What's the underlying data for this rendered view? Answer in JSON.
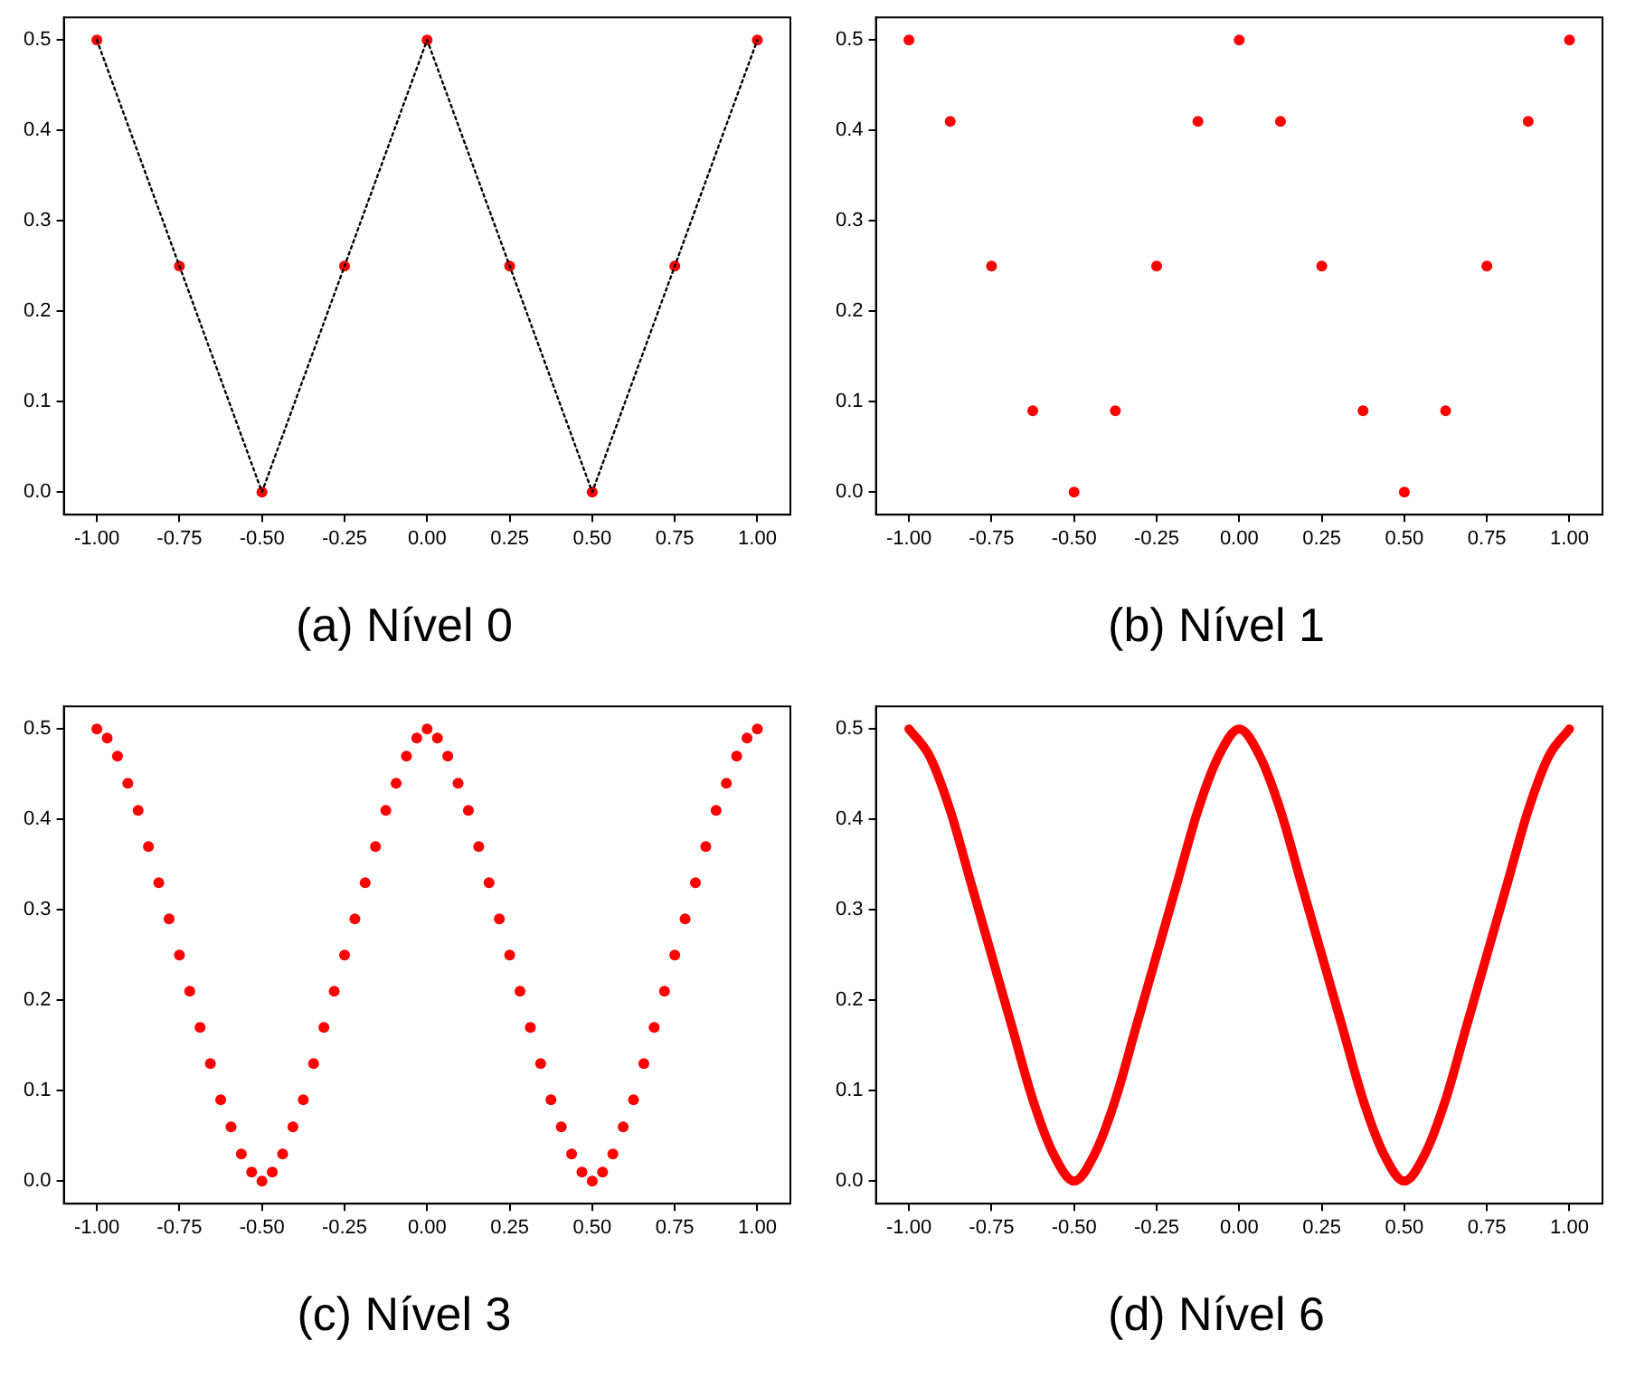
{
  "chart_data": [
    {
      "type": "scatter",
      "title": "(a) Nível 0",
      "xlim": [
        -1.1,
        1.1
      ],
      "ylim": [
        -0.025,
        0.525
      ],
      "xticks": [
        {
          "value": -1,
          "label": "-1.00"
        },
        {
          "value": -0.75,
          "label": "-0.75"
        },
        {
          "value": -0.5,
          "label": "-0.50"
        },
        {
          "value": -0.25,
          "label": "-0.25"
        },
        {
          "value": 0,
          "label": "0.00"
        },
        {
          "value": 0.25,
          "label": "0.25"
        },
        {
          "value": 0.5,
          "label": "0.50"
        },
        {
          "value": 0.75,
          "label": "0.75"
        },
        {
          "value": 1,
          "label": "1.00"
        }
      ],
      "yticks": [
        {
          "value": 0,
          "label": "0.0"
        },
        {
          "value": 0.1,
          "label": "0.1"
        },
        {
          "value": 0.2,
          "label": "0.2"
        },
        {
          "value": 0.3,
          "label": "0.3"
        },
        {
          "value": 0.4,
          "label": "0.4"
        },
        {
          "value": 0.5,
          "label": "0.5"
        }
      ],
      "grid": false,
      "marker": "circle",
      "series": [
        {
          "type": "line",
          "color": "#000000",
          "line_style": "dotted",
          "marker": "none",
          "x": [
            -1,
            -0.75,
            -0.5,
            -0.25,
            0,
            0.25,
            0.5,
            0.75,
            1
          ],
          "values": [
            0.5,
            0.25,
            0,
            0.25,
            0.5,
            0.25,
            0,
            0.25,
            0.5
          ]
        },
        {
          "type": "scatter",
          "color": "#ff0000",
          "x": [
            -1,
            -0.75,
            -0.5,
            -0.25,
            0,
            0.25,
            0.5,
            0.75,
            1
          ],
          "values": [
            0.5,
            0.25,
            0,
            0.25,
            0.5,
            0.25,
            0,
            0.25,
            0.5
          ]
        }
      ]
    },
    {
      "type": "scatter",
      "title": "(b) Nível 1",
      "xlim": [
        -1.1,
        1.1
      ],
      "ylim": [
        -0.025,
        0.525
      ],
      "xticks": [
        {
          "value": -1,
          "label": "-1.00"
        },
        {
          "value": -0.75,
          "label": "-0.75"
        },
        {
          "value": -0.5,
          "label": "-0.50"
        },
        {
          "value": -0.25,
          "label": "-0.25"
        },
        {
          "value": 0,
          "label": "0.00"
        },
        {
          "value": 0.25,
          "label": "0.25"
        },
        {
          "value": 0.5,
          "label": "0.50"
        },
        {
          "value": 0.75,
          "label": "0.75"
        },
        {
          "value": 1,
          "label": "1.00"
        }
      ],
      "yticks": [
        {
          "value": 0,
          "label": "0.0"
        },
        {
          "value": 0.1,
          "label": "0.1"
        },
        {
          "value": 0.2,
          "label": "0.2"
        },
        {
          "value": 0.3,
          "label": "0.3"
        },
        {
          "value": 0.4,
          "label": "0.4"
        },
        {
          "value": 0.5,
          "label": "0.5"
        }
      ],
      "grid": false,
      "marker": "circle",
      "series": [
        {
          "type": "scatter",
          "color": "#ff0000",
          "x": [
            -1,
            -0.875,
            -0.75,
            -0.625,
            -0.5,
            -0.375,
            -0.25,
            -0.125,
            0,
            0.125,
            0.25,
            0.375,
            0.5,
            0.625,
            0.75,
            0.875,
            1
          ],
          "values": [
            0.5,
            0.41,
            0.25,
            0.09,
            0,
            0.09,
            0.25,
            0.41,
            0.5,
            0.41,
            0.25,
            0.09,
            0,
            0.09,
            0.25,
            0.41,
            0.5
          ]
        }
      ]
    },
    {
      "type": "scatter",
      "title": "(c) Nível 3",
      "xlim": [
        -1.1,
        1.1
      ],
      "ylim": [
        -0.025,
        0.525
      ],
      "xticks": [
        {
          "value": -1,
          "label": "-1.00"
        },
        {
          "value": -0.75,
          "label": "-0.75"
        },
        {
          "value": -0.5,
          "label": "-0.50"
        },
        {
          "value": -0.25,
          "label": "-0.25"
        },
        {
          "value": 0,
          "label": "0.00"
        },
        {
          "value": 0.25,
          "label": "0.25"
        },
        {
          "value": 0.5,
          "label": "0.50"
        },
        {
          "value": 0.75,
          "label": "0.75"
        },
        {
          "value": 1,
          "label": "1.00"
        }
      ],
      "yticks": [
        {
          "value": 0,
          "label": "0.0"
        },
        {
          "value": 0.1,
          "label": "0.1"
        },
        {
          "value": 0.2,
          "label": "0.2"
        },
        {
          "value": 0.3,
          "label": "0.3"
        },
        {
          "value": 0.4,
          "label": "0.4"
        },
        {
          "value": 0.5,
          "label": "0.5"
        }
      ],
      "grid": false,
      "marker": "circle",
      "series": [
        {
          "type": "scatter",
          "color": "#ff0000",
          "x": [
            -1,
            -0.96875,
            -0.9375,
            -0.90625,
            -0.875,
            -0.84375,
            -0.8125,
            -0.78125,
            -0.75,
            -0.71875,
            -0.6875,
            -0.65625,
            -0.625,
            -0.59375,
            -0.5625,
            -0.53125,
            -0.5,
            -0.46875,
            -0.4375,
            -0.40625,
            -0.375,
            -0.34375,
            -0.3125,
            -0.28125,
            -0.25,
            -0.21875,
            -0.1875,
            -0.15625,
            -0.125,
            -0.09375,
            -0.0625,
            -0.03125,
            0,
            0.03125,
            0.0625,
            0.09375,
            0.125,
            0.15625,
            0.1875,
            0.21875,
            0.25,
            0.28125,
            0.3125,
            0.34375,
            0.375,
            0.40625,
            0.4375,
            0.46875,
            0.5,
            0.53125,
            0.5625,
            0.59375,
            0.625,
            0.65625,
            0.6875,
            0.71875,
            0.75,
            0.78125,
            0.8125,
            0.84375,
            0.875,
            0.90625,
            0.9375,
            0.96875,
            1
          ],
          "values": [
            0.5,
            0.49,
            0.47,
            0.44,
            0.41,
            0.37,
            0.33,
            0.29,
            0.25,
            0.21,
            0.17,
            0.13,
            0.09,
            0.06,
            0.03,
            0.01,
            0,
            0.01,
            0.03,
            0.06,
            0.09,
            0.13,
            0.17,
            0.21,
            0.25,
            0.29,
            0.33,
            0.37,
            0.41,
            0.44,
            0.47,
            0.49,
            0.5,
            0.49,
            0.47,
            0.44,
            0.41,
            0.37,
            0.33,
            0.29,
            0.25,
            0.21,
            0.17,
            0.13,
            0.09,
            0.06,
            0.03,
            0.01,
            0,
            0.01,
            0.03,
            0.06,
            0.09,
            0.13,
            0.17,
            0.21,
            0.25,
            0.29,
            0.33,
            0.37,
            0.41,
            0.44,
            0.47,
            0.49,
            0.5
          ]
        }
      ]
    },
    {
      "type": "scatter",
      "title": "(d) Nível 6",
      "xlim": [
        -1.1,
        1.1
      ],
      "ylim": [
        -0.025,
        0.525
      ],
      "xticks": [
        {
          "value": -1,
          "label": "-1.00"
        },
        {
          "value": -0.75,
          "label": "-0.75"
        },
        {
          "value": -0.5,
          "label": "-0.50"
        },
        {
          "value": -0.25,
          "label": "-0.25"
        },
        {
          "value": 0,
          "label": "0.00"
        },
        {
          "value": 0.25,
          "label": "0.25"
        },
        {
          "value": 0.5,
          "label": "0.50"
        },
        {
          "value": 0.75,
          "label": "0.75"
        },
        {
          "value": 1,
          "label": "1.00"
        }
      ],
      "yticks": [
        {
          "value": 0,
          "label": "0.0"
        },
        {
          "value": 0.1,
          "label": "0.1"
        },
        {
          "value": 0.2,
          "label": "0.2"
        },
        {
          "value": 0.3,
          "label": "0.3"
        },
        {
          "value": 0.4,
          "label": "0.4"
        },
        {
          "value": 0.5,
          "label": "0.5"
        }
      ],
      "grid": false,
      "series": [
        {
          "type": "line",
          "color": "#ff0000",
          "line_style": "solid",
          "marker": "none",
          "x": [
            -1,
            -0.9375,
            -0.875,
            -0.8125,
            -0.75,
            -0.6875,
            -0.625,
            -0.5625,
            -0.5,
            -0.4375,
            -0.375,
            -0.3125,
            -0.25,
            -0.1875,
            -0.125,
            -0.0625,
            0,
            0.0625,
            0.125,
            0.1875,
            0.25,
            0.3125,
            0.375,
            0.4375,
            0.5,
            0.5625,
            0.625,
            0.6875,
            0.75,
            0.8125,
            0.875,
            0.9375,
            1
          ],
          "values": [
            0.5,
            0.47,
            0.41,
            0.33,
            0.25,
            0.17,
            0.09,
            0.03,
            0,
            0.03,
            0.09,
            0.17,
            0.25,
            0.33,
            0.41,
            0.47,
            0.5,
            0.47,
            0.41,
            0.33,
            0.25,
            0.17,
            0.09,
            0.03,
            0,
            0.03,
            0.09,
            0.17,
            0.25,
            0.33,
            0.41,
            0.47,
            0.5
          ]
        }
      ]
    }
  ]
}
